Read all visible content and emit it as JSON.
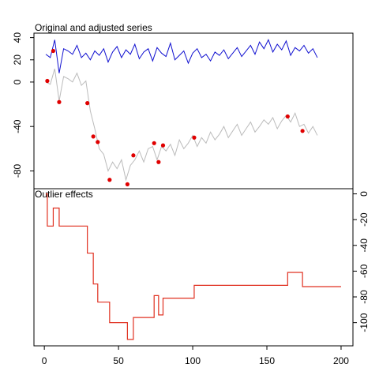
{
  "chart_data": [
    {
      "type": "line",
      "title": "Original and adjusted series",
      "xlim": [
        -7,
        208
      ],
      "ylim": [
        -96,
        44
      ],
      "yticks": [
        40,
        20,
        0,
        -40,
        -80
      ],
      "series": [
        {
          "color": "#1010d0",
          "style": "line",
          "x": [
            1,
            4,
            7,
            10,
            13,
            16,
            19,
            22,
            25,
            28,
            31,
            34,
            37,
            40,
            43,
            46,
            49,
            52,
            55,
            58,
            61,
            64,
            67,
            70,
            73,
            76,
            79,
            82,
            85,
            88,
            91,
            94,
            97,
            100,
            103,
            106,
            109,
            112,
            115,
            118,
            121,
            124,
            127,
            130,
            133,
            136,
            139,
            142,
            145,
            148,
            151,
            154,
            157,
            160,
            163,
            166,
            169,
            172,
            175,
            178,
            181,
            184
          ],
          "values": [
            25,
            22,
            38,
            8,
            30,
            28,
            25,
            33,
            22,
            26,
            20,
            28,
            24,
            30,
            18,
            27,
            32,
            22,
            29,
            25,
            34,
            21,
            27,
            30,
            19,
            31,
            26,
            23,
            35,
            20,
            24,
            28,
            17,
            26,
            30,
            22,
            25,
            19,
            27,
            24,
            29,
            21,
            26,
            31,
            23,
            28,
            33,
            25,
            36,
            30,
            38,
            27,
            34,
            29,
            37,
            24,
            31,
            28,
            33,
            26,
            30,
            22
          ]
        },
        {
          "color": "#bbbbbb",
          "style": "line",
          "x": [
            1,
            4,
            7,
            10,
            13,
            16,
            19,
            22,
            25,
            28,
            31,
            34,
            37,
            40,
            43,
            46,
            49,
            52,
            55,
            58,
            61,
            64,
            67,
            70,
            73,
            76,
            79,
            82,
            85,
            88,
            91,
            94,
            97,
            100,
            103,
            106,
            109,
            112,
            115,
            118,
            121,
            124,
            127,
            130,
            133,
            136,
            139,
            142,
            145,
            148,
            151,
            154,
            157,
            160,
            163,
            166,
            169,
            172,
            175,
            178,
            181,
            184
          ],
          "values": [
            0,
            -2,
            12,
            -17,
            5,
            3,
            0,
            8,
            -3,
            1,
            -26,
            -42,
            -60,
            -65,
            -80,
            -72,
            -78,
            -70,
            -88,
            -75,
            -70,
            -62,
            -72,
            -60,
            -58,
            -70,
            -58,
            -62,
            -56,
            -66,
            -52,
            -60,
            -55,
            -48,
            -58,
            -50,
            -55,
            -45,
            -52,
            -47,
            -40,
            -50,
            -44,
            -38,
            -48,
            -42,
            -36,
            -45,
            -40,
            -34,
            -38,
            -32,
            -42,
            -35,
            -30,
            -36,
            -28,
            -40,
            -38,
            -46,
            -40,
            -48
          ]
        },
        {
          "color": "#e00000",
          "style": "points",
          "x": [
            2,
            6,
            10,
            29,
            33,
            36,
            44,
            56,
            60,
            74,
            77,
            80,
            101,
            164,
            174
          ],
          "values": [
            1,
            28,
            -18,
            -19,
            -49,
            -54,
            -88,
            -92,
            -66,
            -55,
            -72,
            -57,
            -50,
            -31,
            -44
          ]
        }
      ]
    },
    {
      "type": "step",
      "title": "Outlier effects",
      "xlim": [
        -7,
        208
      ],
      "ylim": [
        -118,
        4
      ],
      "xticks": [
        0,
        50,
        100,
        150,
        200
      ],
      "yticks": [
        0,
        -20,
        -40,
        -60,
        -80,
        -100
      ],
      "color": "#e03020",
      "x": [
        1,
        2,
        6,
        10,
        29,
        33,
        36,
        44,
        56,
        60,
        74,
        77,
        80,
        101,
        164,
        174,
        200
      ],
      "values": [
        0,
        -25,
        -11,
        -25,
        -46,
        -70,
        -84,
        -100,
        -113,
        -96,
        -79,
        -94,
        -81,
        -71,
        -61,
        -72,
        -72
      ]
    }
  ]
}
